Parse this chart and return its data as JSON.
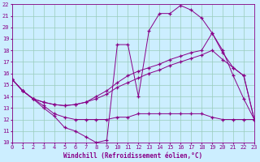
{
  "bg_color": "#cceeff",
  "line_color": "#880088",
  "grid_color": "#99ccbb",
  "xlabel": "Windchill (Refroidissement éolien,°C)",
  "xlim": [
    0,
    23
  ],
  "ylim": [
    10,
    22
  ],
  "yticks": [
    10,
    11,
    12,
    13,
    14,
    15,
    16,
    17,
    18,
    19,
    20,
    21,
    22
  ],
  "xticks": [
    0,
    1,
    2,
    3,
    4,
    5,
    6,
    7,
    8,
    9,
    10,
    11,
    12,
    13,
    14,
    15,
    16,
    17,
    18,
    19,
    20,
    21,
    22,
    23
  ],
  "line1_x": [
    0,
    1,
    2,
    3,
    4,
    5,
    6,
    7,
    8,
    9,
    10,
    11,
    12,
    13,
    14,
    15,
    16,
    17,
    18,
    19,
    20,
    21,
    22,
    23
  ],
  "line1_y": [
    15.5,
    14.5,
    13.8,
    13.0,
    12.3,
    11.3,
    11.0,
    10.5,
    10.0,
    10.2,
    18.5,
    18.5,
    14.0,
    19.7,
    21.2,
    21.2,
    21.9,
    21.5,
    20.8,
    19.5,
    18.0,
    15.8,
    13.8,
    12.0
  ],
  "line2_x": [
    0,
    1,
    2,
    3,
    4,
    5,
    6,
    7,
    8,
    9,
    10,
    11,
    12,
    13,
    14,
    15,
    16,
    17,
    18,
    19,
    20,
    21,
    22,
    23
  ],
  "line2_y": [
    15.5,
    14.5,
    13.8,
    13.2,
    12.5,
    12.2,
    12.0,
    12.0,
    12.0,
    12.0,
    12.2,
    12.2,
    12.5,
    12.5,
    12.5,
    12.5,
    12.5,
    12.5,
    12.5,
    12.2,
    12.0,
    12.0,
    12.0,
    12.0
  ],
  "line3_x": [
    0,
    1,
    2,
    3,
    4,
    5,
    6,
    7,
    8,
    9,
    10,
    11,
    12,
    13,
    14,
    15,
    16,
    17,
    18,
    19,
    20,
    21,
    22,
    23
  ],
  "line3_y": [
    15.5,
    14.5,
    13.8,
    13.5,
    13.3,
    13.2,
    13.3,
    13.5,
    14.0,
    14.5,
    15.2,
    15.8,
    16.2,
    16.5,
    16.8,
    17.2,
    17.5,
    17.8,
    18.0,
    19.5,
    17.8,
    16.5,
    15.8,
    12.0
  ],
  "line4_x": [
    0,
    1,
    2,
    3,
    4,
    5,
    6,
    7,
    8,
    9,
    10,
    11,
    12,
    13,
    14,
    15,
    16,
    17,
    18,
    19,
    20,
    21,
    22,
    23
  ],
  "line4_y": [
    15.5,
    14.5,
    13.8,
    13.5,
    13.3,
    13.2,
    13.3,
    13.5,
    13.8,
    14.2,
    14.8,
    15.2,
    15.6,
    16.0,
    16.3,
    16.7,
    17.0,
    17.3,
    17.6,
    18.0,
    17.2,
    16.5,
    15.8,
    12.0
  ]
}
